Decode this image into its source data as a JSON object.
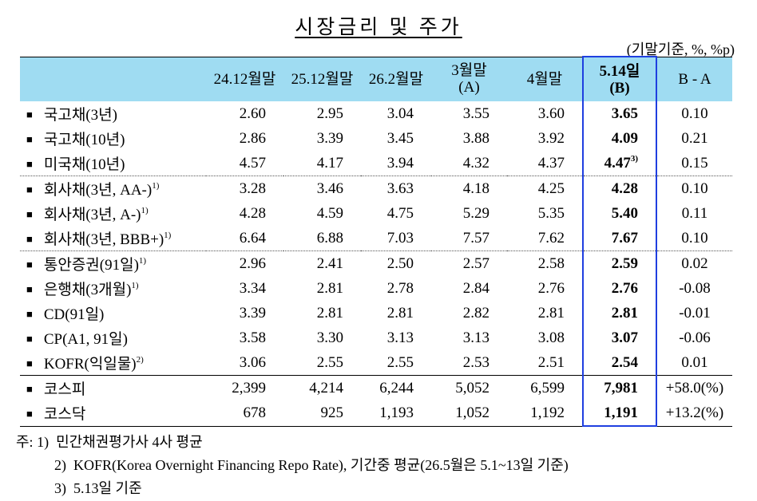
{
  "title": "시장금리 및 주가",
  "unit": "(기말기준, %, %p)",
  "table": {
    "header": [
      [
        "24.12월말"
      ],
      [
        "25.12월말"
      ],
      [
        "26.2월말"
      ],
      [
        "3월말",
        "(A)"
      ],
      [
        "4월말"
      ],
      [
        "5.14일",
        "(B)"
      ],
      [
        "B - A"
      ]
    ],
    "groups": [
      {
        "rows": [
          {
            "label": "국고채(3년)",
            "values": [
              "2.60",
              "2.95",
              "3.04",
              "3.55",
              "3.60",
              "3.65",
              "0.10"
            ]
          },
          {
            "label": "국고채(10년)",
            "values": [
              "2.86",
              "3.39",
              "3.45",
              "3.88",
              "3.92",
              "4.09",
              "0.21"
            ]
          },
          {
            "label": "미국채(10년)",
            "values": [
              "4.57",
              "4.17",
              "3.94",
              "4.32",
              "4.37",
              "4.47",
              "0.15"
            ],
            "value_notes": {
              "5": "3)"
            }
          }
        ]
      },
      {
        "rows": [
          {
            "label": "회사채(3년, AA-)",
            "note": "1)",
            "values": [
              "3.28",
              "3.46",
              "3.63",
              "4.18",
              "4.25",
              "4.28",
              "0.10"
            ]
          },
          {
            "label": "회사채(3년, A-)",
            "note": "1)",
            "values": [
              "4.28",
              "4.59",
              "4.75",
              "5.29",
              "5.35",
              "5.40",
              "0.11"
            ]
          },
          {
            "label": "회사채(3년, BBB+)",
            "note": "1)",
            "values": [
              "6.64",
              "6.88",
              "7.03",
              "7.57",
              "7.62",
              "7.67",
              "0.10"
            ]
          }
        ]
      },
      {
        "rows": [
          {
            "label": "통안증권(91일)",
            "note": "1)",
            "values": [
              "2.96",
              "2.41",
              "2.50",
              "2.57",
              "2.58",
              "2.59",
              "0.02"
            ]
          },
          {
            "label": "은행채(3개월)",
            "note": "1)",
            "values": [
              "3.34",
              "2.81",
              "2.78",
              "2.84",
              "2.76",
              "2.76",
              "-0.08"
            ]
          },
          {
            "label": "CD(91일)",
            "values": [
              "3.39",
              "2.81",
              "2.81",
              "2.82",
              "2.81",
              "2.81",
              "-0.01"
            ]
          },
          {
            "label": "CP(A1, 91일)",
            "values": [
              "3.58",
              "3.30",
              "3.13",
              "3.13",
              "3.08",
              "3.07",
              "-0.06"
            ]
          },
          {
            "label": "KOFR(익일물)",
            "note": "2)",
            "values": [
              "3.06",
              "2.55",
              "2.55",
              "2.53",
              "2.51",
              "2.54",
              "0.01"
            ]
          }
        ]
      },
      {
        "rows": [
          {
            "label": "코스피",
            "values": [
              "2,399",
              "4,214",
              "6,244",
              "5,052",
              "6,599",
              "7,981",
              "+58.0(%)"
            ]
          },
          {
            "label": "코스닥",
            "values": [
              "678",
              "925",
              "1,193",
              "1,052",
              "1,192",
              "1,191",
              "+13.2(%)"
            ]
          }
        ]
      }
    ]
  },
  "notes": {
    "prefix": "주:",
    "items": [
      {
        "num": "1)",
        "text": "민간채권평가사 4사 평균"
      },
      {
        "num": "2)",
        "text": "KOFR(Korea Overnight Financing Repo Rate), 기간중 평균(26.5월은 5.1~13일 기준)"
      },
      {
        "num": "3)",
        "text": "5.13일 기준"
      }
    ]
  }
}
